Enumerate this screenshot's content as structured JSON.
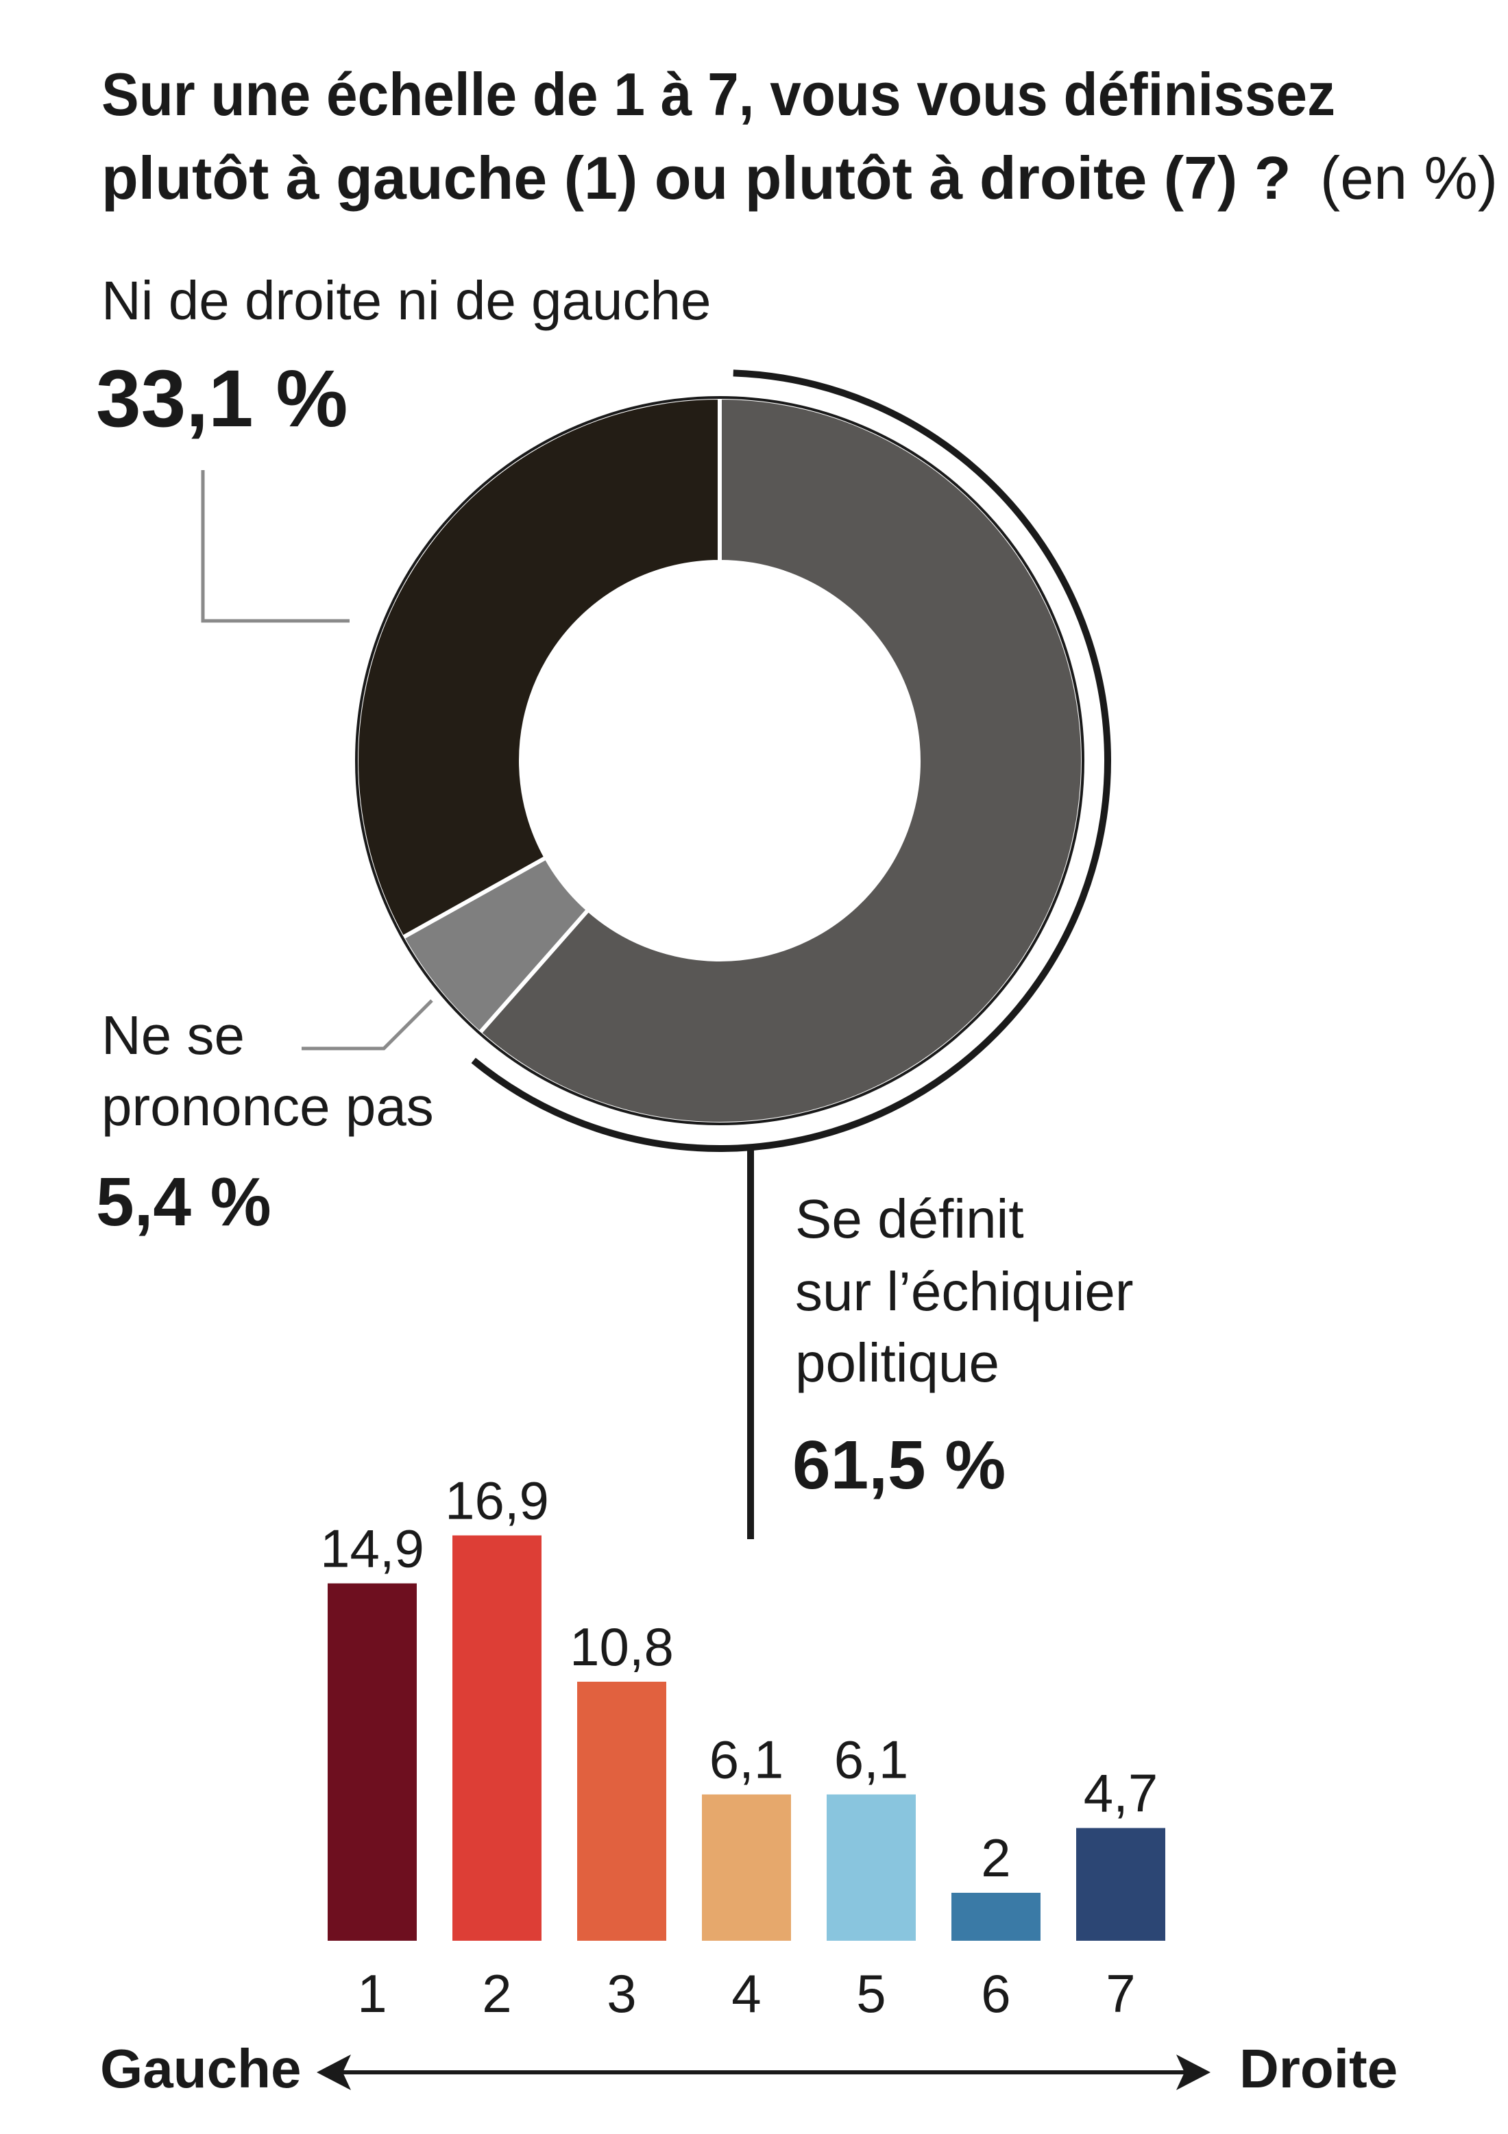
{
  "title_line1": "Sur une échelle de 1 à 7, vous vous définissez",
  "title_line2": "plutôt à gauche (1) ou plutôt à droite (7) ?",
  "title_unit": "(en %)",
  "colors": {
    "text": "#1a1a1a",
    "donut_ni": "#231d15",
    "donut_nsp": "#7f7f7f",
    "donut_def": "#595755",
    "leader": "#8a8a8a"
  },
  "chart_data": [
    {
      "type": "pie",
      "style": "donut",
      "unit": "%",
      "slices": [
        {
          "label_lines": [
            "Se définit",
            "sur l’échiquier",
            "politique"
          ],
          "value_label": "61,5 %",
          "value": 61.5,
          "color": "#595755"
        },
        {
          "label_lines": [
            "Ne se",
            "prononce pas"
          ],
          "value_label": "5,4 %",
          "value": 5.4,
          "color": "#7f7f7f"
        },
        {
          "label_lines": [
            "Ni de droite ni de gauche"
          ],
          "value_label": "33,1 %",
          "value": 33.1,
          "color": "#231d15"
        }
      ]
    },
    {
      "type": "bar",
      "categories": [
        "1",
        "2",
        "3",
        "4",
        "5",
        "6",
        "7"
      ],
      "values": [
        14.9,
        16.9,
        10.8,
        6.1,
        6.1,
        2,
        4.7
      ],
      "value_labels": [
        "14,9",
        "16,9",
        "10,8",
        "6,1",
        "6,1",
        "2",
        "4,7"
      ],
      "colors": [
        "#6e0f1f",
        "#dd3e36",
        "#e1613f",
        "#e6a86c",
        "#89c5de",
        "#3a7aa6",
        "#2c4674"
      ],
      "axis_left_label": "Gauche",
      "axis_right_label": "Droite",
      "grid": false
    }
  ]
}
